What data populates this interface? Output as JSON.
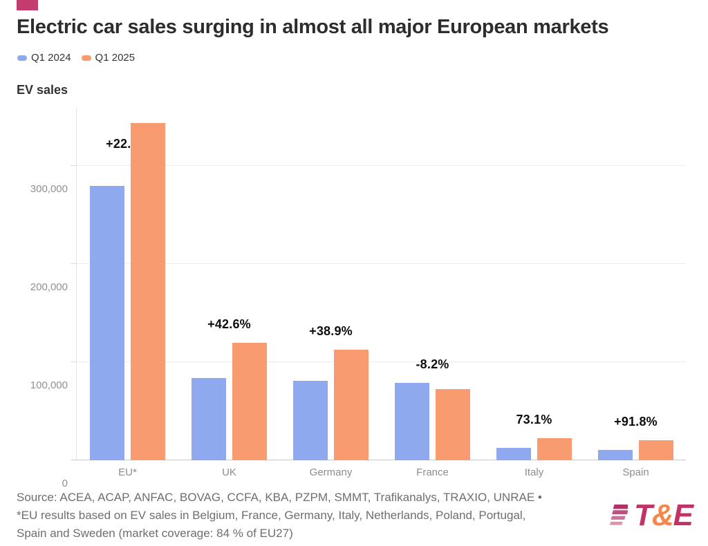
{
  "brand": {
    "mark_color": "#c43b70",
    "logo": {
      "t": "T",
      "amp": "&",
      "e": "E",
      "text_color": "#c23268",
      "amp_color": "#f5874a",
      "stripe_colors": [
        "#b23165",
        "#c04f7f",
        "#cf7096",
        "#dd92ad"
      ]
    }
  },
  "header": {
    "title": "Electric car sales surging in almost all major European markets"
  },
  "chart_data": {
    "type": "bar",
    "title": "EV sales",
    "categories": [
      "EU*",
      "UK",
      "Germany",
      "France",
      "Italy",
      "Spain"
    ],
    "series": [
      {
        "name": "Q1 2024",
        "color": "#8fa9ee",
        "values": [
          280000,
          84000,
          81000,
          79000,
          12900,
          10700
        ]
      },
      {
        "name": "Q1 2025",
        "color": "#f99b70",
        "values": [
          343800,
          119800,
          112500,
          72500,
          22300,
          20500
        ]
      }
    ],
    "change_labels": [
      "+22.8%",
      "+42.6%",
      "+38.9%",
      "-8.2%",
      "73.1%",
      "+91.8%"
    ],
    "ytick_labels": [
      "0",
      "100,000",
      "200,000",
      "300,000"
    ],
    "ytick_values": [
      0,
      100000,
      200000,
      300000
    ],
    "ylim": [
      0,
      360000
    ],
    "grid": "horizontal",
    "legend_position": "top-left"
  },
  "footer": {
    "source_lines": [
      "Source: ACEA, ACAP, ANFAC, BOVAG, CCFA, KBA, PZPM, SMMT, Trafikanalys, TRAXIO, UNRAE •",
      "*EU results based on EV sales in Belgium, France, Germany, Italy, Netherlands, Poland, Portugal,",
      "Spain and Sweden (market coverage: 84 % of EU27)"
    ]
  }
}
